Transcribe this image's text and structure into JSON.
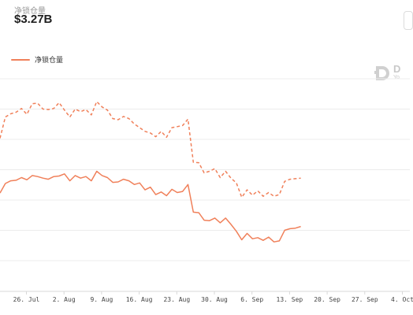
{
  "header": {
    "metric_label": "净锁仓量",
    "metric_value": "$3.27B"
  },
  "watermark": {
    "mark": "D",
    "sub": "Yo"
  },
  "colors": {
    "series": "#f0805a",
    "grid": "#ececec",
    "text": "#444444"
  },
  "chart_data": {
    "type": "line",
    "x_tick_labels": [
      "26. Jul",
      "2. Aug",
      "9. Aug",
      "16. Aug",
      "23. Aug",
      "30. Aug",
      "6. Sep",
      "13. Sep",
      "20. Sep",
      "27. Sep",
      "4. Oct"
    ],
    "legend_entries": [
      "净锁仓量"
    ],
    "grid": true,
    "series": [
      {
        "name": "净锁仓量",
        "style": "solid",
        "values": [
          68.5,
          70.3,
          70.8,
          70.9,
          71.4,
          71.0,
          71.8,
          71.6,
          71.3,
          71.1,
          71.6,
          71.7,
          72.1,
          70.8,
          71.8,
          71.3,
          71.6,
          70.8,
          72.6,
          71.8,
          71.4,
          70.5,
          70.6,
          71.1,
          70.8,
          70.1,
          70.4,
          69.1,
          69.6,
          68.2,
          68.7,
          68.0,
          69.2,
          68.6,
          68.8,
          70.1,
          64.9,
          64.8,
          63.4,
          63.3,
          63.8,
          62.9,
          63.8,
          62.6,
          61.3,
          59.7,
          60.9,
          59.9,
          60.1,
          59.6,
          60.2,
          59.3,
          59.5,
          61.5,
          61.8,
          61.9,
          62.2
        ]
      },
      {
        "name": "",
        "style": "dashed",
        "values": [
          78.8,
          82.8,
          83.4,
          83.7,
          84.4,
          83.3,
          85.3,
          85.4,
          84.3,
          84.2,
          84.4,
          85.5,
          84.1,
          82.8,
          84.3,
          83.8,
          84.2,
          83.2,
          85.7,
          84.7,
          84.1,
          82.5,
          82.3,
          82.9,
          82.5,
          81.5,
          80.8,
          80.1,
          79.8,
          79.1,
          80.1,
          79.0,
          80.8,
          81.0,
          81.2,
          82.4,
          74.3,
          74.2,
          72.3,
          72.6,
          73.1,
          71.4,
          72.6,
          71.3,
          70.4,
          67.7,
          69.1,
          68.1,
          68.9,
          67.9,
          68.6,
          67.9,
          68.2,
          70.7,
          71.1,
          71.2,
          71.3
        ]
      }
    ]
  }
}
